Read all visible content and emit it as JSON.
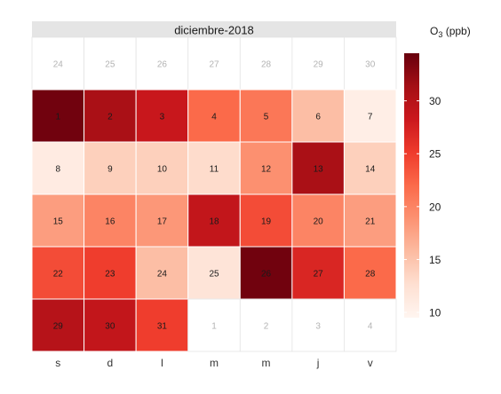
{
  "chart_data": {
    "type": "heatmap",
    "subtype": "calendar",
    "panel_title": "diciembre-2018",
    "weekday_labels": [
      "s",
      "d",
      "l",
      "m",
      "m",
      "j",
      "v"
    ],
    "legend": {
      "title_main": "O",
      "title_sub": "3",
      "title_unit": " (ppb)",
      "ticks": [
        "10",
        "15",
        "20",
        "25",
        "30"
      ],
      "tick_values": [
        10,
        15,
        20,
        25,
        30
      ],
      "range": [
        9.5,
        34.5
      ],
      "colors": [
        "#FFF5F0",
        "#FEE0D2",
        "#FCBBA1",
        "#FC9272",
        "#FB6A4A",
        "#EF3B2C",
        "#CB181D",
        "#A50F15",
        "#67000D"
      ]
    },
    "cells": [
      {
        "label": "24",
        "week": 0,
        "weekday": 0,
        "in_month": false
      },
      {
        "label": "25",
        "week": 0,
        "weekday": 1,
        "in_month": false
      },
      {
        "label": "26",
        "week": 0,
        "weekday": 2,
        "in_month": false
      },
      {
        "label": "27",
        "week": 0,
        "weekday": 3,
        "in_month": false
      },
      {
        "label": "28",
        "week": 0,
        "weekday": 4,
        "in_month": false
      },
      {
        "label": "29",
        "week": 0,
        "weekday": 5,
        "in_month": false
      },
      {
        "label": "30",
        "week": 0,
        "weekday": 6,
        "in_month": false
      },
      {
        "label": "1",
        "week": 1,
        "weekday": 0,
        "in_month": true,
        "value": 34
      },
      {
        "label": "2",
        "week": 1,
        "weekday": 1,
        "in_month": true,
        "value": 31
      },
      {
        "label": "3",
        "week": 1,
        "weekday": 2,
        "in_month": true,
        "value": 28.5
      },
      {
        "label": "4",
        "week": 1,
        "weekday": 3,
        "in_month": true,
        "value": 22
      },
      {
        "label": "5",
        "week": 1,
        "weekday": 4,
        "in_month": true,
        "value": 21
      },
      {
        "label": "6",
        "week": 1,
        "weekday": 5,
        "in_month": true,
        "value": 15.5
      },
      {
        "label": "7",
        "week": 1,
        "weekday": 6,
        "in_month": true,
        "value": 10.5
      },
      {
        "label": "8",
        "week": 2,
        "weekday": 0,
        "in_month": true,
        "value": 11
      },
      {
        "label": "9",
        "week": 2,
        "weekday": 1,
        "in_month": true,
        "value": 14
      },
      {
        "label": "10",
        "week": 2,
        "weekday": 2,
        "in_month": true,
        "value": 14
      },
      {
        "label": "11",
        "week": 2,
        "weekday": 3,
        "in_month": true,
        "value": 13
      },
      {
        "label": "12",
        "week": 2,
        "weekday": 4,
        "in_month": true,
        "value": 19
      },
      {
        "label": "13",
        "week": 2,
        "weekday": 5,
        "in_month": true,
        "value": 31
      },
      {
        "label": "14",
        "week": 2,
        "weekday": 6,
        "in_month": true,
        "value": 14
      },
      {
        "label": "15",
        "week": 3,
        "weekday": 0,
        "in_month": true,
        "value": 18
      },
      {
        "label": "16",
        "week": 3,
        "weekday": 1,
        "in_month": true,
        "value": 20
      },
      {
        "label": "17",
        "week": 3,
        "weekday": 2,
        "in_month": true,
        "value": 18.5
      },
      {
        "label": "18",
        "week": 3,
        "weekday": 3,
        "in_month": true,
        "value": 29
      },
      {
        "label": "19",
        "week": 3,
        "weekday": 4,
        "in_month": true,
        "value": 24
      },
      {
        "label": "20",
        "week": 3,
        "weekday": 5,
        "in_month": true,
        "value": 20
      },
      {
        "label": "21",
        "week": 3,
        "weekday": 6,
        "in_month": true,
        "value": 18
      },
      {
        "label": "22",
        "week": 4,
        "weekday": 0,
        "in_month": true,
        "value": 24
      },
      {
        "label": "23",
        "week": 4,
        "weekday": 1,
        "in_month": true,
        "value": 25
      },
      {
        "label": "24",
        "week": 4,
        "weekday": 2,
        "in_month": true,
        "value": 15.5
      },
      {
        "label": "25",
        "week": 4,
        "weekday": 3,
        "in_month": true,
        "value": 12
      },
      {
        "label": "26",
        "week": 4,
        "weekday": 4,
        "in_month": true,
        "value": 34
      },
      {
        "label": "27",
        "week": 4,
        "weekday": 5,
        "in_month": true,
        "value": 27
      },
      {
        "label": "28",
        "week": 4,
        "weekday": 6,
        "in_month": true,
        "value": 22
      },
      {
        "label": "29",
        "week": 5,
        "weekday": 0,
        "in_month": true,
        "value": 30
      },
      {
        "label": "30",
        "week": 5,
        "weekday": 1,
        "in_month": true,
        "value": 29
      },
      {
        "label": "31",
        "week": 5,
        "weekday": 2,
        "in_month": true,
        "value": 25
      },
      {
        "label": "1",
        "week": 5,
        "weekday": 3,
        "in_month": false
      },
      {
        "label": "2",
        "week": 5,
        "weekday": 4,
        "in_month": false
      },
      {
        "label": "3",
        "week": 5,
        "weekday": 5,
        "in_month": false
      },
      {
        "label": "4",
        "week": 5,
        "weekday": 6,
        "in_month": false
      }
    ]
  }
}
